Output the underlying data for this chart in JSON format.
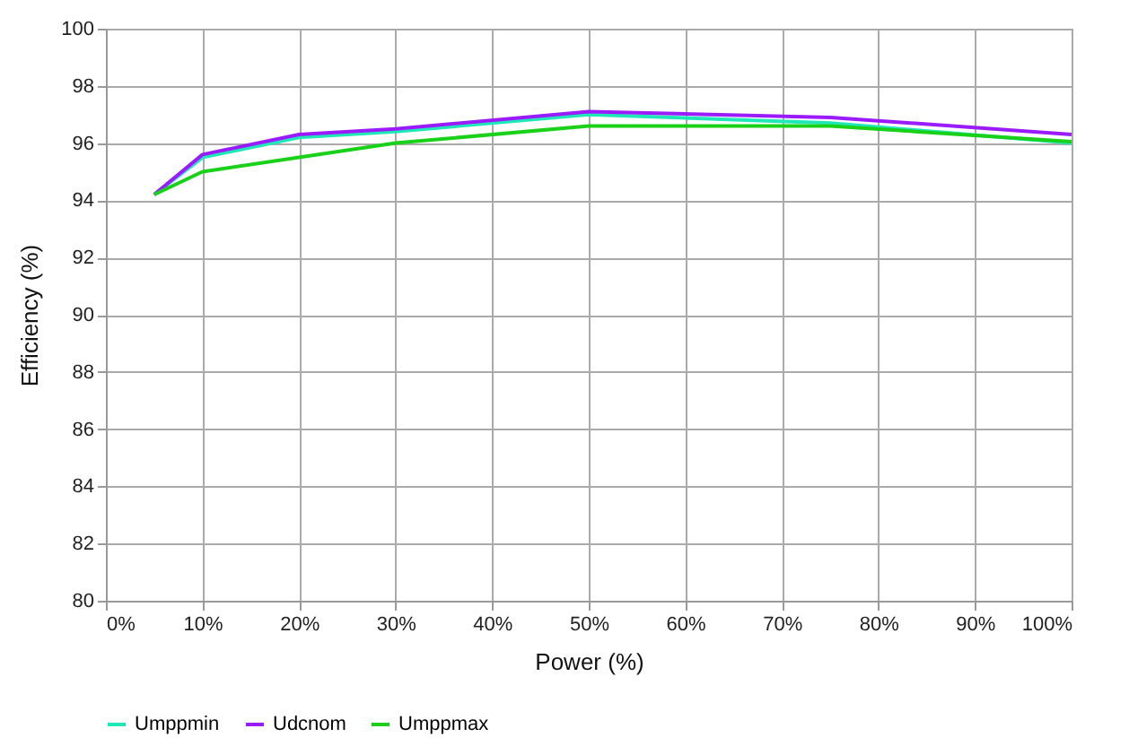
{
  "chart_data": {
    "type": "line",
    "xlabel": "Power (%)",
    "ylabel": "Efficiency (%)",
    "x": [
      5,
      10,
      20,
      30,
      50,
      75,
      100
    ],
    "series": [
      {
        "name": "Umppmin",
        "color": "#1ee8b8",
        "values": [
          94.2,
          95.5,
          96.2,
          96.4,
          97.0,
          96.7,
          96.0
        ]
      },
      {
        "name": "Udcnom",
        "color": "#9b1bff",
        "values": [
          94.2,
          95.6,
          96.3,
          96.5,
          97.1,
          96.9,
          96.3
        ]
      },
      {
        "name": "Umppmax",
        "color": "#1ad11a",
        "values": [
          94.2,
          95.0,
          95.5,
          96.0,
          96.6,
          96.6,
          96.05
        ]
      }
    ],
    "xlim": [
      0,
      100
    ],
    "xticks": [
      {
        "value": 0,
        "label": "0%"
      },
      {
        "value": 10,
        "label": "10%"
      },
      {
        "value": 20,
        "label": "20%"
      },
      {
        "value": 30,
        "label": "30%"
      },
      {
        "value": 40,
        "label": "40%"
      },
      {
        "value": 50,
        "label": "50%"
      },
      {
        "value": 60,
        "label": "60%"
      },
      {
        "value": 70,
        "label": "70%"
      },
      {
        "value": 80,
        "label": "80%"
      },
      {
        "value": 90,
        "label": "90%"
      },
      {
        "value": 100,
        "label": "100%"
      }
    ],
    "ylim": [
      80,
      100
    ],
    "yticks": [
      80,
      82,
      84,
      86,
      88,
      90,
      92,
      94,
      96,
      98,
      100
    ],
    "grid": true,
    "legend": "bottom",
    "marker": "none",
    "line_style": "solid"
  }
}
